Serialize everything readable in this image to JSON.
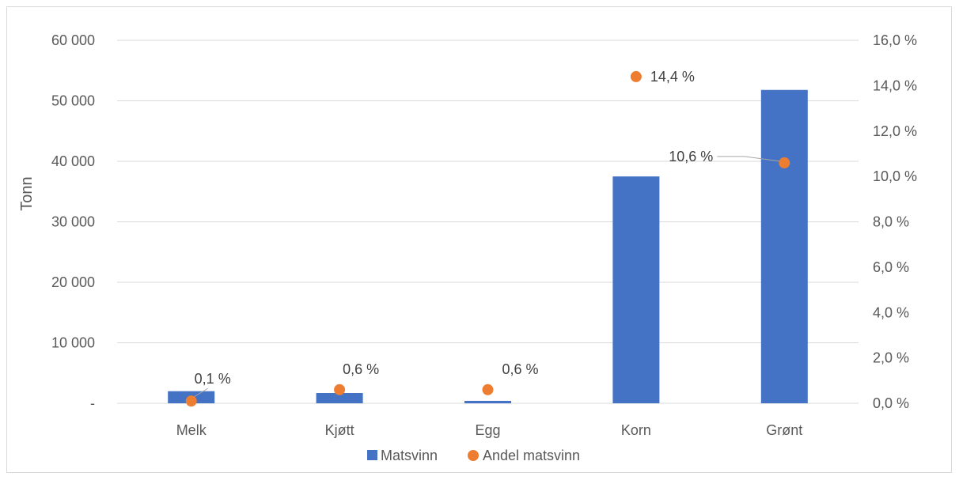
{
  "chart_data": {
    "type": "bar",
    "categories": [
      "Melk",
      "Kjøtt",
      "Egg",
      "Korn",
      "Grønt"
    ],
    "series": [
      {
        "name": "Matsvinn",
        "type": "bar",
        "axis": "left",
        "color": "#4472c4",
        "values": [
          2000,
          1700,
          400,
          37500,
          51800
        ]
      },
      {
        "name": "Andel matsvinn",
        "type": "scatter",
        "axis": "right",
        "color": "#ed7d31",
        "values": [
          0.1,
          0.6,
          0.6,
          14.4,
          10.6
        ],
        "labels": [
          "0,1 %",
          "0,6 %",
          "0,6 %",
          "14,4 %",
          "10,6 %"
        ]
      }
    ],
    "ylabel": "Tonn",
    "ylim": [
      0,
      60000
    ],
    "y2lim": [
      0,
      16
    ],
    "y_ticks": [
      "-",
      "10 000",
      "20 000",
      "30 000",
      "40 000",
      "50 000",
      "60 000"
    ],
    "y2_ticks": [
      "0,0 %",
      "2,0 %",
      "4,0 %",
      "6,0 %",
      "8,0 %",
      "10,0 %",
      "12,0 %",
      "14,0 %",
      "16,0 %"
    ],
    "grid": true,
    "legend": "bottom"
  }
}
